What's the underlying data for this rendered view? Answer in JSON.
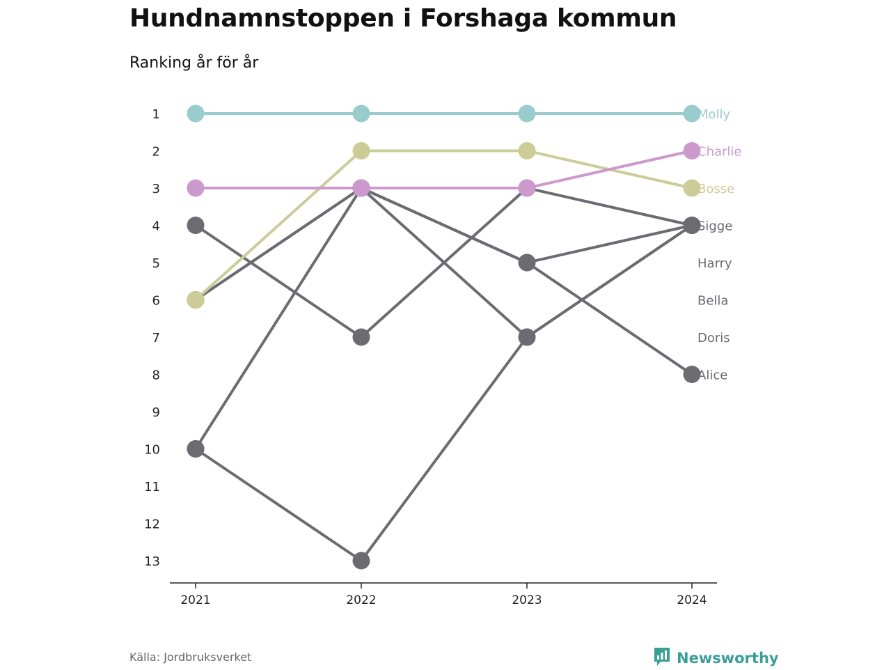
{
  "header": {
    "title": "Hundnamnstoppen i Forshaga kommun",
    "subtitle": "Ranking år för år"
  },
  "footer": {
    "source": "Källa: Jordbruksverket",
    "brand": "Newsworthy",
    "brand_icon": "newsworthy-logo-icon",
    "brand_color": "#3a9e98"
  },
  "chart_data": {
    "type": "line",
    "title": "Hundnamnstoppen i Forshaga kommun",
    "subtitle": "Ranking år för år",
    "x": [
      "2021",
      "2022",
      "2023",
      "2024"
    ],
    "y_ticks": [
      "1",
      "2",
      "3",
      "4",
      "5",
      "6",
      "7",
      "8",
      "9",
      "10",
      "11",
      "12",
      "13"
    ],
    "ylim": [
      1,
      13
    ],
    "y_reversed": true,
    "grid": false,
    "legend": "direct labels at right end",
    "series": [
      {
        "name": "Alice",
        "values": [
          10,
          3,
          5,
          8
        ],
        "color": "#6c6b71"
      },
      {
        "name": "Doris",
        "values": [
          10,
          13,
          7,
          4
        ],
        "color": "#6c6b71"
      },
      {
        "name": "Bella",
        "values": [
          4,
          7,
          3,
          4
        ],
        "color": "#6c6b71"
      },
      {
        "name": "Harry",
        "values": [
          6,
          3,
          7,
          4
        ],
        "color": "#6c6b71"
      },
      {
        "name": "Sigge",
        "values": [
          6,
          3,
          5,
          4
        ],
        "color": "#6c6b71"
      },
      {
        "name": "Bosse",
        "values": [
          6,
          2,
          2,
          3
        ],
        "color": "#cccc99"
      },
      {
        "name": "Charlie",
        "values": [
          3,
          3,
          3,
          2
        ],
        "color": "#cc99cc"
      },
      {
        "name": "Molly",
        "values": [
          1,
          1,
          1,
          1
        ],
        "color": "#99cccc"
      }
    ],
    "label_order": [
      "Molly",
      "Charlie",
      "Bosse",
      "Sigge",
      "Harry",
      "Bella",
      "Doris",
      "Alice"
    ]
  }
}
